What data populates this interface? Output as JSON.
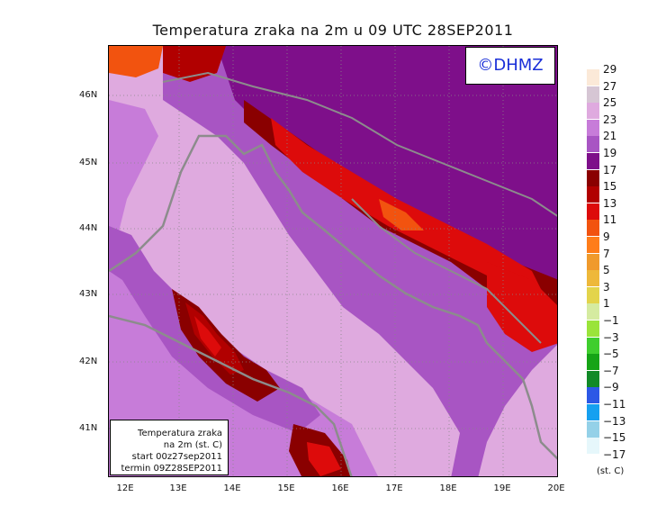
{
  "title": "Temperatura zraka na 2m u 09 UTC 28SEP2011",
  "copyright": "©DHMZ",
  "infobox": {
    "line1": "Temperatura zraka",
    "line2": "na 2m (st. C)",
    "line3": "start 00z27sep2011",
    "line4": "termin 09Z28SEP2011"
  },
  "lat_labels": [
    "46N",
    "45N",
    "44N",
    "43N",
    "42N",
    "41N"
  ],
  "lon_labels": [
    "12E",
    "13E",
    "14E",
    "15E",
    "16E",
    "17E",
    "18E",
    "19E",
    "20E"
  ],
  "legend": {
    "unit": "(st. C)",
    "labels": [
      "29",
      "27",
      "25",
      "23",
      "21",
      "19",
      "17",
      "15",
      "13",
      "11",
      "9",
      "7",
      "5",
      "3",
      "1",
      "−1",
      "−3",
      "−5",
      "−7",
      "−9",
      "−11",
      "−13",
      "−15",
      "−17"
    ],
    "colors": [
      "#fbe9d8",
      "#d6c6d4",
      "#dfaadf",
      "#c77cd9",
      "#a855c3",
      "#7e0f8a",
      "#8a0000",
      "#b10000",
      "#dd0b0b",
      "#f2530f",
      "#ff7d1a",
      "#f09a2c",
      "#eeb83a",
      "#e3d44b",
      "#d5eba0",
      "#9ae43a",
      "#3fce2e",
      "#16a416",
      "#118a27",
      "#2c58e6",
      "#16a0f0",
      "#94d1e8",
      "#e6f7fb"
    ]
  },
  "colors": {
    "sea": "#dfaadf",
    "land_warm": "#c77cd9",
    "land_mid": "#a855c3",
    "land_dark": "#7e0f8a",
    "hot_dark": "#8a0000",
    "hot": "#b10000",
    "hotter": "#dd0b0b",
    "orange": "#f2530f",
    "coast": "#8c8c8c",
    "copyright_text": "#1a2fd8"
  }
}
